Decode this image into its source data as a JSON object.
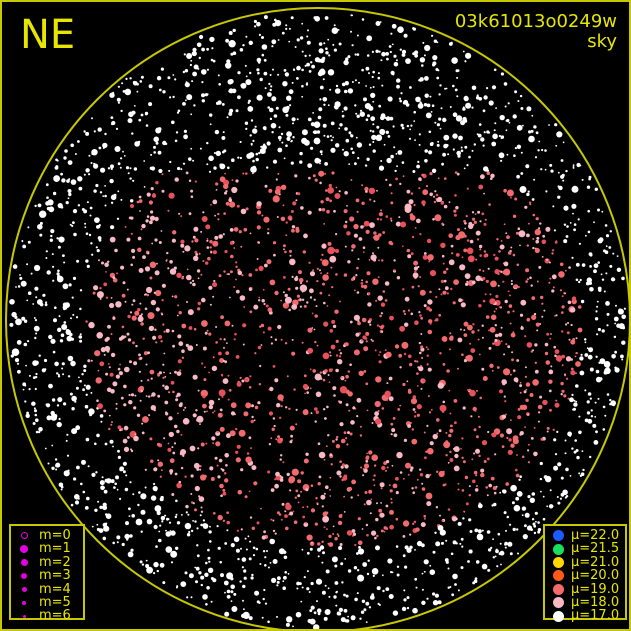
{
  "header": {
    "direction": "NE",
    "image_id": "03k61013o0249w",
    "mode": "sky"
  },
  "magnitude_legend": [
    {
      "label": "m=0",
      "size": 7,
      "hollow": true
    },
    {
      "label": "m=1",
      "size": 8
    },
    {
      "label": "m=2",
      "size": 7
    },
    {
      "label": "m=3",
      "size": 6
    },
    {
      "label": "m=4",
      "size": 5
    },
    {
      "label": "m=5",
      "size": 4
    },
    {
      "label": "m=6",
      "size": 3
    }
  ],
  "magnitude_color": "#e600e6",
  "brightness_legend": [
    {
      "label": "μ=22.0",
      "color": "#1a5cff"
    },
    {
      "label": "μ=21.5",
      "color": "#19e05a"
    },
    {
      "label": "μ=21.0",
      "color": "#ffd700"
    },
    {
      "label": "μ=20.0",
      "color": "#ff5a1a"
    },
    {
      "label": "μ=19.0",
      "color": "#f56a6a"
    },
    {
      "label": "μ=18.0",
      "color": "#f8b8c4"
    },
    {
      "label": "μ=17.0",
      "color": "#ffffff"
    }
  ],
  "horizon_color": "#c8c800"
}
